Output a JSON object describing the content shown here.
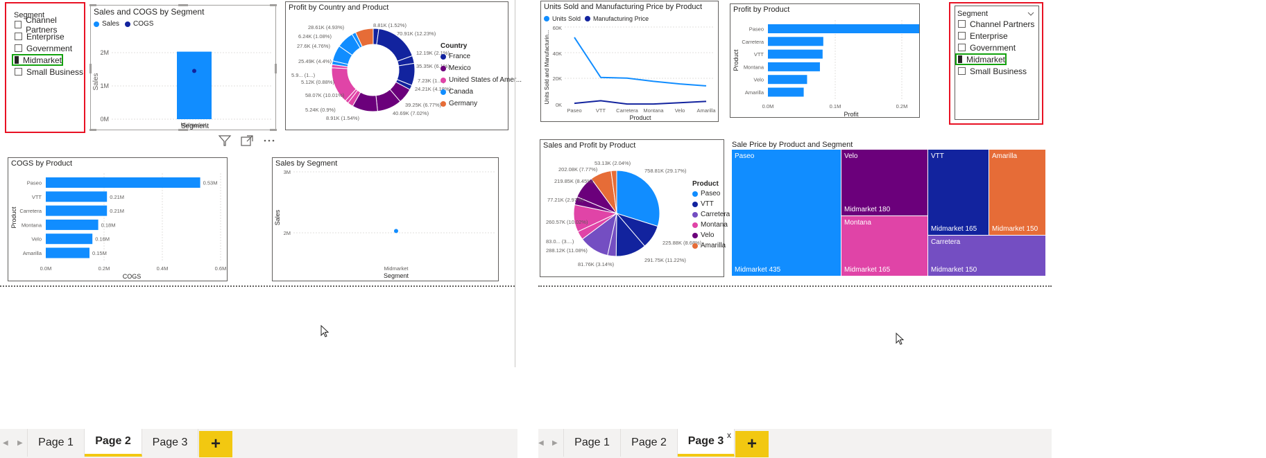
{
  "colors": {
    "blue": "#118dff",
    "navy": "#12239e",
    "orange": "#e66c37",
    "purple": "#6b007b",
    "pink": "#e044a7",
    "violet": "#744ec2",
    "red": "#e81123",
    "green": "#13a10e",
    "yellow": "#f2c811"
  },
  "left_panel": {
    "segment_slicer": {
      "header": "Segment",
      "items": [
        {
          "label": "Channel Partners",
          "checked": false
        },
        {
          "label": "Enterprise",
          "checked": false
        },
        {
          "label": "Government",
          "checked": false
        },
        {
          "label": "Midmarket",
          "checked": true
        },
        {
          "label": "Small Business",
          "checked": false
        }
      ]
    },
    "sales_cogs": {
      "title": "Sales and COGS by Segment",
      "legend": [
        "Sales",
        "COGS"
      ],
      "yaxis_label": "Sales",
      "xaxis_label": "Segment",
      "yticks": [
        "2M",
        "1M",
        "0M"
      ],
      "category": "Midmarket"
    },
    "profit_country": {
      "title": "Profit by Country and Product",
      "legend_title": "Country",
      "legend": [
        "France",
        "Mexico",
        "United States of Amer...",
        "Canada",
        "Germany"
      ],
      "labels": [
        "8.81K (1.52%)",
        "70.91K (12.23%)",
        "12.19K (2.1%)",
        "35.35K (6.1%)",
        "7.23K (1....)",
        "24.21K (4.18%)",
        "39.25K (6.77%)",
        "40.69K (7.02%)",
        "8.91K (1.54%)",
        "5.24K (0.9%)",
        "58.07K (10.01%)",
        "5.12K (0.88%)",
        "5.9... (1...)",
        "25.49K (4.4%)",
        "27.6K (4.76%)",
        "6.24K (1.08%)",
        "28.61K (4.93%)"
      ]
    },
    "visual_header_icons": [
      "filter-icon",
      "focus-mode-icon",
      "more-options-icon"
    ],
    "cogs_product": {
      "title": "COGS by Product",
      "yaxis_label": "Product",
      "xaxis_label": "COGS",
      "xticks": [
        "0.0M",
        "0.2M",
        "0.4M",
        "0.6M"
      ]
    },
    "sales_segment": {
      "title": "Sales by Segment",
      "yaxis_label": "Sales",
      "xaxis_label": "Segment",
      "yticks": [
        "3M",
        "2M"
      ],
      "category": "Midmarket"
    },
    "tabs": [
      "Page 1",
      "Page 2",
      "Page 3"
    ],
    "active_tab": "Page 2",
    "plus": "+"
  },
  "right_panel": {
    "units_price": {
      "title": "Units Sold and Manufacturing Price by Product",
      "legend": [
        "Units Sold",
        "Manufacturing Price"
      ],
      "yaxis_label": "Units Sold and Manufacturin...",
      "xaxis_label": "Product",
      "yticks": [
        "60K",
        "40K",
        "20K",
        "0K"
      ]
    },
    "profit_product": {
      "title": "Profit by Product",
      "yaxis_label": "Product",
      "xaxis_label": "Profit",
      "xticks": [
        "0.0M",
        "0.1M",
        "0.2M"
      ]
    },
    "segment_slicer": {
      "header": "Segment",
      "chevron": "chevron-down-icon",
      "items": [
        {
          "label": "Channel Partners",
          "checked": false
        },
        {
          "label": "Enterprise",
          "checked": false
        },
        {
          "label": "Government",
          "checked": false
        },
        {
          "label": "Midmarket",
          "checked": true
        },
        {
          "label": "Small Business",
          "checked": false
        }
      ]
    },
    "sales_profit": {
      "title": "Sales and Profit by Product",
      "legend_title": "Product",
      "legend": [
        "Paseo",
        "VTT",
        "Carretera",
        "Montana",
        "Velo",
        "Amarilla"
      ],
      "labels": [
        "758.81K (29.17%)",
        "225.88K (8.68%)",
        "291.75K (11.22%)",
        "81.76K (3.14%)",
        "288.12K (11.08%)",
        "83.0... (3....)",
        "260.57K (10.02%)",
        "77.21K (2.97%)",
        "219.85K (8.45%)",
        "202.08K (7.77%)",
        "53.13K (2.04%)"
      ]
    },
    "treemap": {
      "title": "Sale Price by Product and Segment",
      "cells": [
        {
          "product": "Paseo",
          "value_label": "Midmarket 435"
        },
        {
          "product": "Velo",
          "value_label": "Midmarket 180"
        },
        {
          "product": "Montana",
          "value_label": "Midmarket 165"
        },
        {
          "product": "VTT",
          "value_label": "Midmarket 165"
        },
        {
          "product": "Amarilla",
          "value_label": "Midmarket 150"
        },
        {
          "product": "Carretera",
          "value_label": "Midmarket 150"
        }
      ]
    },
    "tabs": [
      "Page 1",
      "Page 2",
      "Page 3"
    ],
    "active_tab": "Page 3",
    "close": "x",
    "plus": "+"
  },
  "chart_data": [
    {
      "type": "bar",
      "title": "Sales and COGS by Segment",
      "categories": [
        "Midmarket"
      ],
      "series": [
        {
          "name": "Sales",
          "values": [
            2.03
          ]
        },
        {
          "name": "COGS",
          "values": [
            1.45
          ]
        }
      ],
      "xlabel": "Segment",
      "ylabel": "Sales",
      "ylim": [
        0,
        2.2
      ],
      "units": "M"
    },
    {
      "type": "pie",
      "title": "Profit by Country and Product",
      "donut": true,
      "values": [
        8.81,
        70.91,
        12.19,
        35.35,
        7.23,
        24.21,
        39.25,
        40.69,
        8.91,
        5.24,
        58.07,
        5.12,
        5.9,
        25.49,
        27.6,
        6.24,
        28.61
      ],
      "series_colors": [
        "#12239e",
        "#12239e",
        "#12239e",
        "#12239e",
        "#12239e",
        "#6b007b",
        "#6b007b",
        "#6b007b",
        "#e044a7",
        "#e044a7",
        "#e044a7",
        "#e044a7",
        "#118dff",
        "#118dff",
        "#118dff",
        "#118dff",
        "#e66c37"
      ]
    },
    {
      "type": "bar",
      "title": "COGS by Product",
      "orientation": "horizontal",
      "categories": [
        "Paseo",
        "VTT",
        "Carretera",
        "Montana",
        "Velo",
        "Amarilla"
      ],
      "values": [
        0.53,
        0.21,
        0.21,
        0.18,
        0.16,
        0.15
      ],
      "data_labels": [
        "0.53M",
        "0.21M",
        "0.21M",
        "0.18M",
        "0.16M",
        "0.15M"
      ],
      "xlabel": "COGS",
      "ylabel": "Product",
      "xlim": [
        0,
        0.6
      ]
    },
    {
      "type": "scatter",
      "title": "Sales by Segment",
      "categories": [
        "Midmarket"
      ],
      "values": [
        2.03
      ],
      "xlabel": "Segment",
      "ylabel": "Sales",
      "ylim": [
        1.95,
        3
      ],
      "units": "M"
    },
    {
      "type": "line",
      "title": "Units Sold and Manufacturing Price by Product",
      "categories": [
        "Paseo",
        "VTT",
        "Carretera",
        "Montana",
        "Velo",
        "Amarilla"
      ],
      "series": [
        {
          "name": "Units Sold",
          "values": [
            52000,
            21000,
            20500,
            18000,
            16000,
            14500
          ]
        },
        {
          "name": "Manufacturing Price",
          "values": [
            1000,
            3000,
            500,
            500,
            1500,
            2500
          ]
        }
      ],
      "xlabel": "Product",
      "ylabel": "Units Sold and Manufacturin...",
      "ylim": [
        0,
        60000
      ]
    },
    {
      "type": "bar",
      "title": "Profit by Product",
      "orientation": "horizontal",
      "categories": [
        "Paseo",
        "Carretera",
        "VTT",
        "Montana",
        "Velo",
        "Amarilla"
      ],
      "values": [
        0.225,
        0.082,
        0.081,
        0.077,
        0.058,
        0.053
      ],
      "xlabel": "Profit",
      "ylabel": "Product",
      "xlim": [
        0,
        0.25
      ]
    },
    {
      "type": "pie",
      "title": "Sales and Profit by Product",
      "values": [
        758.81,
        225.88,
        291.75,
        81.76,
        288.12,
        83.0,
        260.57,
        77.21,
        219.85,
        202.08,
        53.13
      ],
      "series_colors": [
        "#118dff",
        "#12239e",
        "#12239e",
        "#744ec2",
        "#744ec2",
        "#e044a7",
        "#e044a7",
        "#6b007b",
        "#6b007b",
        "#e66c37",
        "#e66c37"
      ]
    }
  ]
}
